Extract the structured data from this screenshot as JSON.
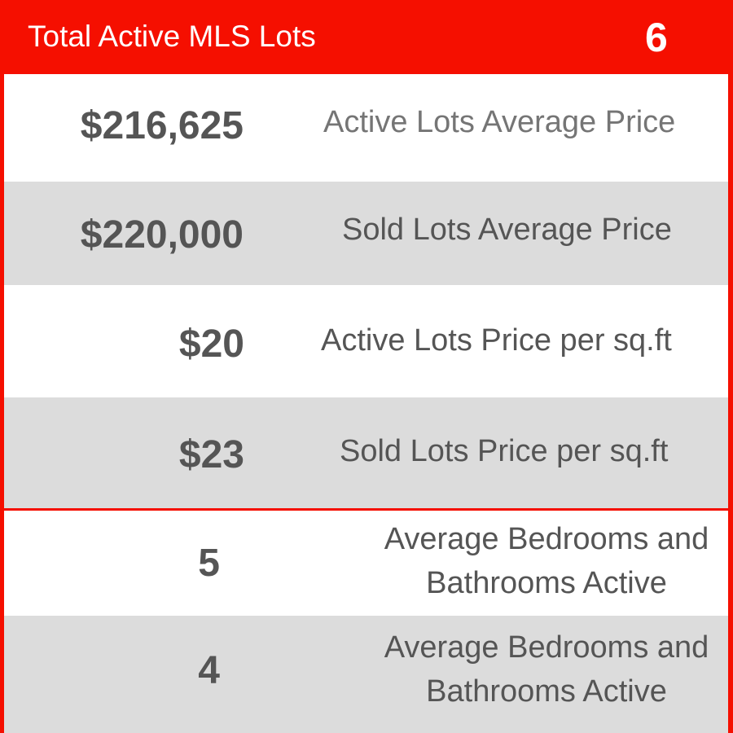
{
  "header": {
    "title": "Total Active MLS Lots",
    "count": "6"
  },
  "rows": [
    {
      "value": "$216,625",
      "label": "Active Lots Average Price"
    },
    {
      "value": "$220,000",
      "label": "Sold Lots Average Price"
    },
    {
      "value": "$20",
      "label": "Active Lots Price per sq.ft"
    },
    {
      "value": "$23",
      "label": "Sold Lots Price per sq.ft"
    },
    {
      "value": "5",
      "label": "Average Bedrooms and Bathrooms Active"
    },
    {
      "value": "4",
      "label": "Average Bedrooms and Bathrooms Active"
    }
  ],
  "colors": {
    "accent": "#f50f00",
    "row_gray": "#dcdcdc",
    "text": "#555555"
  }
}
